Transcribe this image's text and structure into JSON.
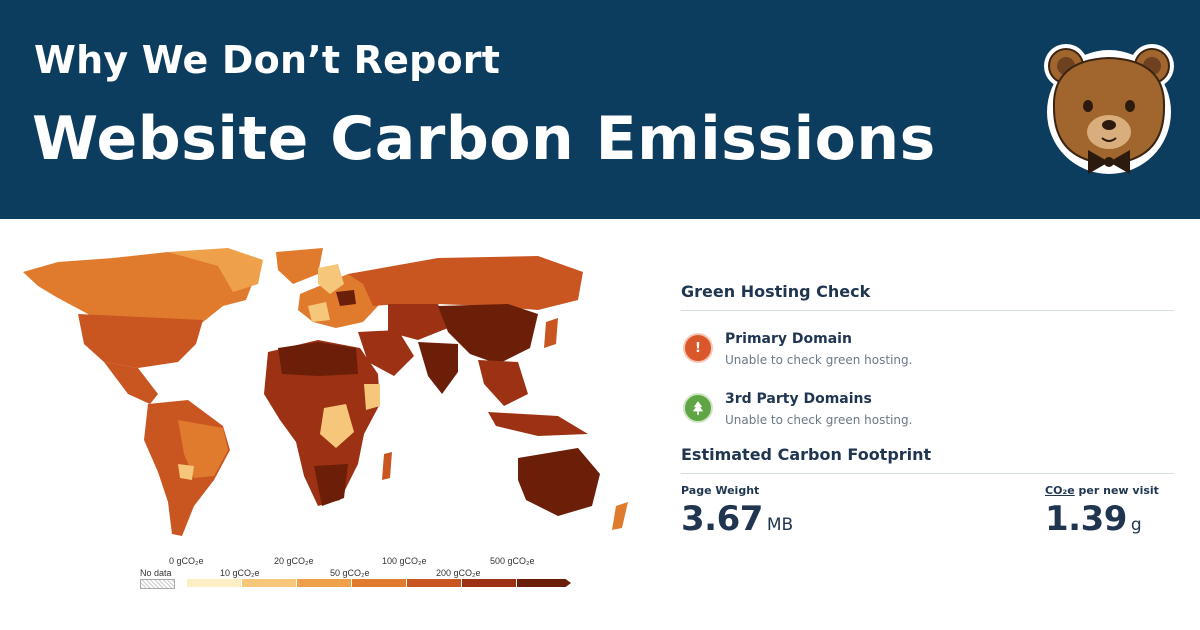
{
  "banner": {
    "title_line1": "Why We Don’t Report",
    "title_line2": "Website Carbon Emissions"
  },
  "mascot": {
    "icon": "bear-mascot-icon"
  },
  "map": {
    "legend": {
      "no_data_label": "No data",
      "ticks_top": [
        "0 gCO₂e",
        "20 gCO₂e",
        "100 gCO₂e",
        "500 gCO₂e"
      ],
      "ticks_bottom": [
        "10 gCO₂e",
        "50 gCO₂e",
        "200 gCO₂e"
      ],
      "colors": [
        "#fcefc5",
        "#f6c77a",
        "#eea04a",
        "#e07b2e",
        "#c95521",
        "#9c3213",
        "#6b1e08"
      ]
    }
  },
  "green_hosting": {
    "title": "Green Hosting Check",
    "primary": {
      "icon": "warning-icon",
      "icon_glyph": "!",
      "title": "Primary Domain",
      "status": "Unable to check green hosting."
    },
    "third_party": {
      "icon": "tree-icon",
      "title": "3rd Party Domains",
      "status": "Unable to check green hosting."
    }
  },
  "footprint": {
    "title": "Estimated Carbon Footprint",
    "page_weight": {
      "label": "Page Weight",
      "value": "3.67",
      "unit": "MB"
    },
    "co2_per_visit": {
      "label_prefix": "CO₂e",
      "label_suffix": " per new visit",
      "value": "1.39",
      "unit": "g"
    }
  }
}
